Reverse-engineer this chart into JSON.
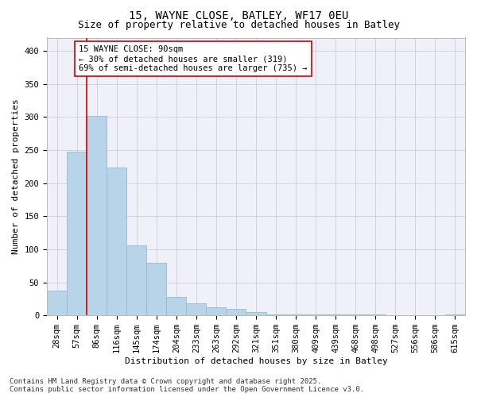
{
  "title": "15, WAYNE CLOSE, BATLEY, WF17 0EU",
  "subtitle": "Size of property relative to detached houses in Batley",
  "xlabel": "Distribution of detached houses by size in Batley",
  "ylabel": "Number of detached properties",
  "categories": [
    "28sqm",
    "57sqm",
    "86sqm",
    "116sqm",
    "145sqm",
    "174sqm",
    "204sqm",
    "233sqm",
    "263sqm",
    "292sqm",
    "321sqm",
    "351sqm",
    "380sqm",
    "409sqm",
    "439sqm",
    "468sqm",
    "498sqm",
    "527sqm",
    "556sqm",
    "586sqm",
    "615sqm"
  ],
  "values": [
    38,
    248,
    302,
    224,
    106,
    79,
    28,
    18,
    12,
    10,
    5,
    2,
    2,
    2,
    1,
    1,
    1,
    0,
    0,
    0,
    2
  ],
  "bar_color": "#b8d4e8",
  "bar_edgecolor": "#9ab8d0",
  "vline_x_index": 2,
  "vline_color": "#cc0000",
  "annotation_text": "15 WAYNE CLOSE: 90sqm\n← 30% of detached houses are smaller (319)\n69% of semi-detached houses are larger (735) →",
  "annotation_box_edgecolor": "#cc0000",
  "annotation_box_facecolor": "#ffffff",
  "ylim": [
    0,
    420
  ],
  "yticks": [
    0,
    50,
    100,
    150,
    200,
    250,
    300,
    350,
    400
  ],
  "grid_color": "#ccccdd",
  "bg_color": "#ffffff",
  "plot_bg_color": "#f0f0f8",
  "footer_text": "Contains HM Land Registry data © Crown copyright and database right 2025.\nContains public sector information licensed under the Open Government Licence v3.0.",
  "title_fontsize": 10,
  "subtitle_fontsize": 9,
  "xlabel_fontsize": 8,
  "ylabel_fontsize": 8,
  "tick_fontsize": 7.5,
  "annotation_fontsize": 7.5,
  "footer_fontsize": 6.5
}
